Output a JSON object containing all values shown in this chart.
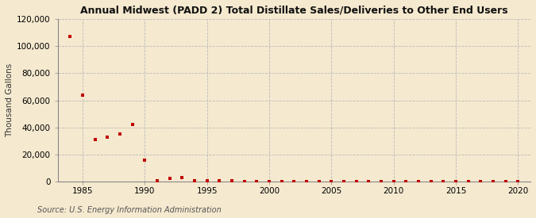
{
  "title": "Annual Midwest (PADD 2) Total Distillate Sales/Deliveries to Other End Users",
  "ylabel": "Thousand Gallons",
  "source_text": "Source: U.S. Energy Information Administration",
  "background_color": "#f5e9cf",
  "plot_background_color": "#f5e9cf",
  "marker_color": "#c00000",
  "marker": "s",
  "marker_size": 3.5,
  "xlim": [
    1983,
    2021
  ],
  "ylim": [
    0,
    120000
  ],
  "yticks": [
    0,
    20000,
    40000,
    60000,
    80000,
    100000,
    120000
  ],
  "xticks": [
    1985,
    1990,
    1995,
    2000,
    2005,
    2010,
    2015,
    2020
  ],
  "years": [
    1984,
    1985,
    1986,
    1987,
    1988,
    1989,
    1990,
    1991,
    1992,
    1993,
    1994,
    1995,
    1996,
    1997,
    1998,
    1999,
    2000,
    2001,
    2002,
    2003,
    2004,
    2005,
    2006,
    2007,
    2008,
    2009,
    2010,
    2011,
    2012,
    2013,
    2014,
    2015,
    2016,
    2017,
    2018,
    2019,
    2020
  ],
  "values": [
    107000,
    64000,
    31000,
    33000,
    35000,
    42000,
    16000,
    800,
    2500,
    3000,
    800,
    500,
    500,
    400,
    300,
    300,
    300,
    300,
    300,
    300,
    300,
    300,
    300,
    300,
    300,
    300,
    300,
    300,
    300,
    300,
    300,
    300,
    300,
    300,
    300,
    300,
    300
  ]
}
